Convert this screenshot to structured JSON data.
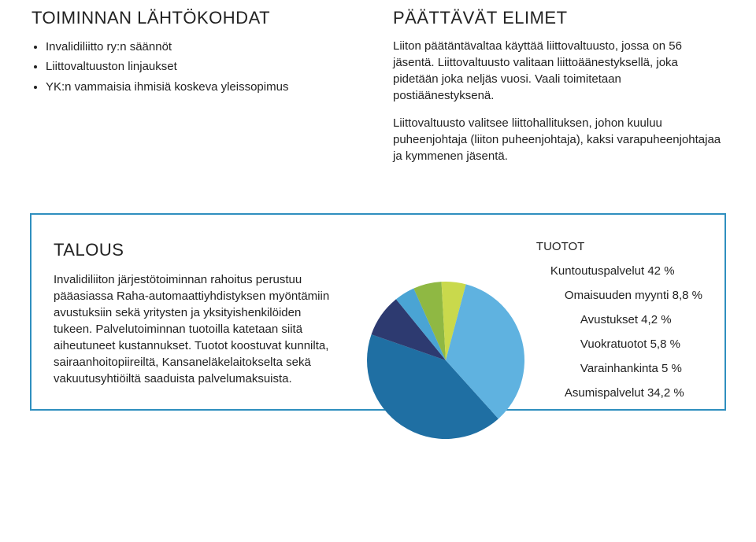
{
  "top_left": {
    "heading": "TOIMINNAN LÄHTÖKOHDAT",
    "items": [
      "Invalidiliitto ry:n säännöt",
      "Liittovaltuuston linjaukset",
      "YK:n vammaisia ihmisiä koskeva yleissopimus"
    ]
  },
  "top_right": {
    "heading": "PÄÄTTÄVÄT ELIMET",
    "para1": "Liiton päätäntävaltaa käyttää liittovaltuusto, jossa on 56 jäsentä. Liittovaltuusto valitaan liittoäänestyksellä, joka pidetään joka neljäs vuosi. Vaali toimitetaan postiäänestyksenä.",
    "para2": "Liittovaltuusto valitsee liittohallituksen, johon kuuluu puheenjohtaja (liiton puheenjohtaja), kaksi varapuheenjohtajaa ja kymmenen jäsentä."
  },
  "economy": {
    "heading": "TALOUS",
    "para": "Invalidiliiton järjestötoiminnan rahoitus perustuu pääasiassa Raha-automaattiyhdistyksen myöntämiin avustuksiin sekä yritysten ja yksityishenkilöiden tukeen. Palvelutoiminnan tuotoilla katetaan siitä aiheutuneet kustannukset. Tuotot koostuvat kunnilta, sairaanhoitopiireiltä, Kansaneläkelaitokselta sekä vakuutusyhtiöiltä saaduista palvelumaksuista.",
    "box_border_color": "#2f8fbf",
    "chart": {
      "type": "pie",
      "head": "TUOTOT",
      "background_color": "#ffffff",
      "label_fontsize": 15,
      "slices": [
        {
          "label": "Kuntoutuspalvelut 42 %",
          "value": 42.0,
          "color": "#1f6fa3"
        },
        {
          "label": "Omaisuuden myynti 8,8 %",
          "value": 8.8,
          "color": "#2d3a70"
        },
        {
          "label": "Avustukset 4,2 %",
          "value": 4.2,
          "color": "#4aa4d4"
        },
        {
          "label": "Vuokratuotot 5,8 %",
          "value": 5.8,
          "color": "#8fb843"
        },
        {
          "label": "Varainhankinta 5 %",
          "value": 5.0,
          "color": "#c9d94c"
        },
        {
          "label": "Asumispalvelut 34,2 %",
          "value": 34.2,
          "color": "#5fb2e0"
        }
      ],
      "start_angle_deg": 48,
      "radius": 100
    }
  }
}
